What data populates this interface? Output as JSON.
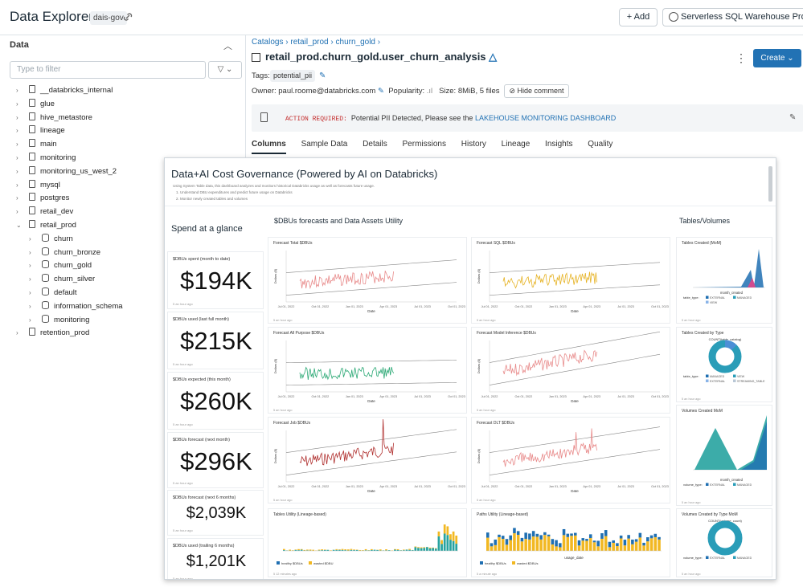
{
  "app": {
    "title": "Data Explorer",
    "workspace": "dais-gov",
    "add_label": "+ Add",
    "warehouse_label": "Serverless SQL Warehouse",
    "warehouse_size": "Pro",
    "warehouse_more": "L"
  },
  "left_panel": {
    "header": "Data",
    "filter_placeholder": "Type to filter",
    "items": [
      {
        "label": "__databricks_internal",
        "level": 0,
        "expanded": false
      },
      {
        "label": "glue",
        "level": 0,
        "expanded": false
      },
      {
        "label": "hive_metastore",
        "level": 0,
        "expanded": false
      },
      {
        "label": "lineage",
        "level": 0,
        "expanded": false
      },
      {
        "label": "main",
        "level": 0,
        "expanded": false
      },
      {
        "label": "monitoring",
        "level": 0,
        "expanded": false
      },
      {
        "label": "monitoring_us_west_2",
        "level": 0,
        "expanded": false
      },
      {
        "label": "mysql",
        "level": 0,
        "expanded": false
      },
      {
        "label": "postgres",
        "level": 0,
        "expanded": false
      },
      {
        "label": "retail_dev",
        "level": 0,
        "expanded": false
      },
      {
        "label": "retail_prod",
        "level": 0,
        "expanded": true
      },
      {
        "label": "churn",
        "level": 1,
        "expanded": false
      },
      {
        "label": "churn_bronze",
        "level": 1,
        "expanded": false
      },
      {
        "label": "churn_gold",
        "level": 1,
        "expanded": false
      },
      {
        "label": "churn_silver",
        "level": 1,
        "expanded": false
      },
      {
        "label": "default",
        "level": 1,
        "expanded": false
      },
      {
        "label": "information_schema",
        "level": 1,
        "expanded": false
      },
      {
        "label": "monitoring",
        "level": 1,
        "expanded": false
      },
      {
        "label": "retention_prod",
        "level": 0,
        "expanded": false
      }
    ]
  },
  "detail": {
    "breadcrumb": [
      "Catalogs",
      "retail_prod",
      "churn_gold"
    ],
    "table_name": "retail_prod.churn_gold.user_churn_analysis",
    "create_label": "Create",
    "tags_label": "Tags:",
    "tag": "potential_pii",
    "owner": "Owner: paul.roome@databricks.com",
    "popularity": "Popularity:",
    "size": "Size: 8MiB, 5 files",
    "hide_comment": "Hide comment",
    "comment_warning": "ACTION REQUIRED:",
    "comment_text": "Potential PII Detected, Please see the",
    "comment_link": "LAKEHOUSE MONITORING DASHBOARD",
    "tabs": [
      "Columns",
      "Sample Data",
      "Details",
      "Permissions",
      "History",
      "Lineage",
      "Insights",
      "Quality"
    ],
    "active_tab": "Columns"
  },
  "dashboard": {
    "title": "Data+AI Cost Governance (Powered by AI on Databricks)",
    "desc_lines": [
      "Using System Table data, this dashboard analyzes and monitors historical Databricks usage as well as forecasts future usage.",
      "1. Understand DBU expenditures and predict future usage on Databricks",
      "2. Monitor newly created tables and volumes"
    ],
    "spend_header": "Spend at a glance",
    "forecast_header": "$DBUs forecasts and Data Assets Utility",
    "tables_header": "Tables/Volumes",
    "ago": "5 an hour ago",
    "spend_cards": [
      {
        "label": "$DBUs spent (month to date)",
        "value": "$194K"
      },
      {
        "label": "$DBUs used (last full month)",
        "value": "$215K"
      },
      {
        "label": "$DBUs expected (this month)",
        "value": "$260K"
      },
      {
        "label": "$DBUs forecast (next month)",
        "value": "$296K"
      },
      {
        "label": "$DBUs forecast (next 6 months)",
        "value": "$2,039K"
      },
      {
        "label": "$DBUs used (trailing 6 months)",
        "value": "$1,201K"
      }
    ],
    "forecast_charts": [
      {
        "title": "Forecast Total $DBUs",
        "xlabel": "Date",
        "ylabel": "Dollars ($)",
        "ticks": [
          "Jul 01, 2022",
          "Oct 01, 2022",
          "Jan 01, 2023",
          "Apr 01, 2023",
          "Jul 01, 2023",
          "Oct 01, 2023"
        ],
        "color": "#e88a8a"
      },
      {
        "title": "Forecast SQL $DBUs",
        "xlabel": "Date",
        "ylabel": "Dollars ($)",
        "ticks": [
          "Jul 01, 2022",
          "Oct 01, 2022",
          "Jan 01, 2023",
          "Apr 01, 2023",
          "Jul 01, 2023",
          "Oct 01, 2023"
        ],
        "color": "#e6b222"
      },
      {
        "title": "Forecast All Purpose $DBUs",
        "xlabel": "Date",
        "ylabel": "Dollars ($)",
        "ticks": [
          "Jul 01, 2022",
          "Oct 01, 2022",
          "Jan 01, 2023",
          "Apr 01, 2023",
          "Jul 01, 2023",
          "Oct 01, 2023"
        ],
        "color": "#2aa874"
      },
      {
        "title": "Forecast Model Inference $DBUs",
        "xlabel": "Date",
        "ylabel": "Dollars ($)",
        "ticks": [
          "Jul 01, 2022",
          "Oct 01, 2022",
          "Jan 01, 2023",
          "Apr 01, 2023",
          "Jul 01, 2023",
          "Oct 01, 2023"
        ],
        "color": "#e88a8a"
      },
      {
        "title": "Forecast Job $DBUs",
        "xlabel": "Date",
        "ylabel": "Dollars ($)",
        "ticks": [
          "Jul 01, 2022",
          "Oct 01, 2022",
          "Jan 01, 2023",
          "Apr 01, 2023",
          "Jul 01, 2023",
          "Oct 01, 2023"
        ],
        "color": "#b0302f"
      },
      {
        "title": "Forecast DLT $DBUs",
        "xlabel": "Date",
        "ylabel": "Dollars ($)",
        "ticks": [
          "Jul 01, 2022",
          "Oct 01, 2022",
          "Jan 01, 2023",
          "Apr 01, 2023",
          "Jul 01, 2023",
          "Oct 01, 2023"
        ],
        "color": "#e88a8a"
      }
    ],
    "utility_charts": [
      {
        "title": "Tables Utility (Lineage-based)",
        "legend": [
          "healthy $DBUs",
          "wasted $DBU"
        ],
        "ago": "5 12 minutes ago"
      },
      {
        "title": "Paths Utility (Lineage-based)",
        "legend": [
          "healthy $DBUs",
          "wasted $DBUs"
        ],
        "xlabel": "usage_date",
        "ago": "5 a minute ago"
      }
    ],
    "right_charts": [
      {
        "title": "Tables Created (MoM)",
        "xlabel": "month_created",
        "legend_label": "table_type:",
        "legend": [
          "EXTERNAL",
          "MANAGED",
          "VIEW"
        ]
      },
      {
        "title": "Tables Created by Type",
        "subtitle": "COUNT(table_catalog)",
        "legend_label": "table_type:",
        "legend": [
          "MANAGED",
          "VIEW",
          "EXTERNAL",
          "STREAMING_TABLE"
        ]
      },
      {
        "title": "Volumes Created MoM",
        "xlabel": "month_created",
        "legend_label": "volume_type:",
        "legend": [
          "EXTERNAL",
          "MANAGED"
        ]
      },
      {
        "title": "Volumes Created by Type MoM",
        "subtitle": "COUNT(volume_count)",
        "legend_label": "volume_type:",
        "legend": [
          "EXTERNAL",
          "MANAGED"
        ]
      }
    ],
    "colors": {
      "blue": "#1f6fb2",
      "teal": "#27a3a0",
      "yellow": "#f2b822",
      "donut": "#2a9db8"
    }
  }
}
